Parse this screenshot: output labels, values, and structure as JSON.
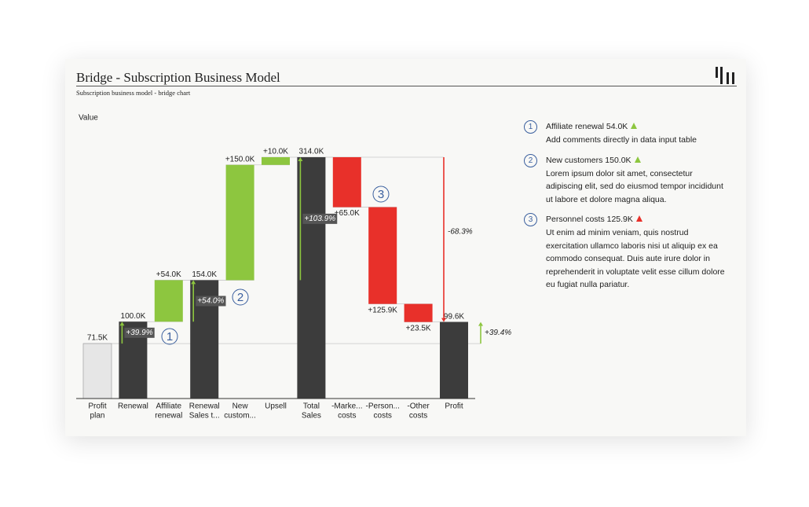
{
  "header": {
    "title": "Bridge - Subscription Business Model",
    "subtitle": "Subscription business model - bridge chart"
  },
  "chart_data": {
    "type": "waterfall",
    "axis_label": "Value",
    "categories": [
      [
        "Profit",
        "plan"
      ],
      [
        "Renewal"
      ],
      [
        "Affiliate",
        "renewal"
      ],
      [
        "Renewal",
        "Sales t..."
      ],
      [
        "New",
        "custom..."
      ],
      [
        "Upsell"
      ],
      [
        "Total",
        "Sales"
      ],
      [
        "-Marke...",
        "costs"
      ],
      [
        "-Person...",
        "costs"
      ],
      [
        "-Other",
        "costs"
      ],
      [
        "Profit"
      ]
    ],
    "values": [
      71.5,
      100.0,
      54.0,
      154.0,
      150.0,
      10.0,
      314.0,
      65.0,
      125.9,
      23.5,
      99.6
    ],
    "value_labels": [
      "71.5K",
      "100.0K",
      "+54.0K",
      "154.0K",
      "+150.0K",
      "+10.0K",
      "314.0K",
      "+65.0K",
      "+125.9K",
      "+23.5K",
      "99.6K"
    ],
    "kinds": [
      "plan",
      "total",
      "increase",
      "total",
      "increase",
      "increase",
      "total",
      "decrease",
      "decrease",
      "decrease",
      "total"
    ],
    "colors": {
      "plan": "#e6e6e6",
      "total": "#3c3c3c",
      "increase": "#8dc63f",
      "decrease": "#e8302a"
    },
    "variances": [
      {
        "value": 39.9,
        "label": "+39.9%"
      },
      {
        "value": 54.0,
        "label": "+54.0%"
      },
      {
        "value": 103.9,
        "label": "+103.9%"
      },
      {
        "value": -68.3,
        "label": "-68.3%"
      },
      {
        "value": 39.4,
        "label": "+39.4%"
      }
    ]
  },
  "notes": [
    {
      "number": 1,
      "title": "Affiliate renewal 54.0K",
      "marker_color": "#8dc63f",
      "body": "Add comments directly in data input table"
    },
    {
      "number": 2,
      "title": "New customers 150.0K",
      "marker_color": "#8dc63f",
      "body": "Lorem ipsum dolor sit amet, consectetur adipiscing elit, sed do eiusmod tempor incididunt ut labore et dolore magna aliqua."
    },
    {
      "number": 3,
      "title": "Personnel costs 125.9K",
      "marker_color": "#e8302a",
      "body": "Ut enim ad minim veniam, quis nostrud exercitation ullamco laboris nisi ut aliquip ex ea commodo consequat. Duis aute irure dolor in reprehenderit in voluptate velit esse cillum dolore eu fugiat nulla pariatur."
    }
  ]
}
